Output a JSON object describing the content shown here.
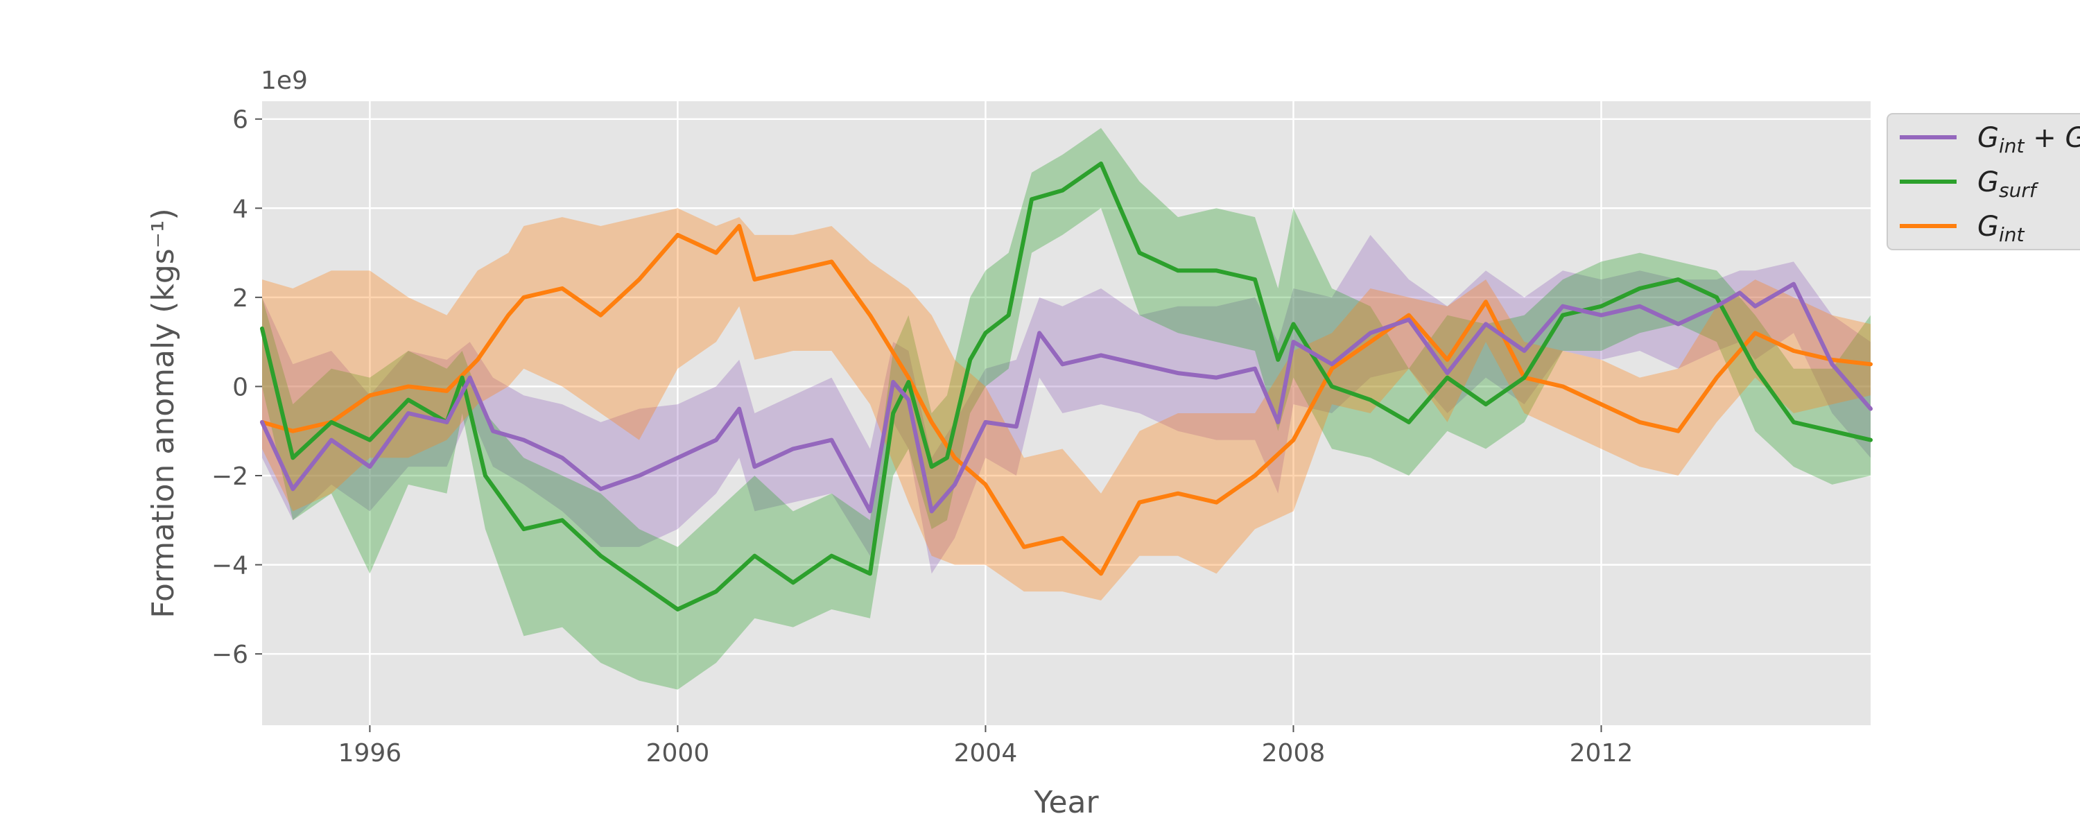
{
  "chart_data": {
    "type": "line",
    "title": "",
    "xlabel": "Year",
    "ylabel": "Formation anomaly (kgs⁻¹)",
    "y_multiplier_label": "1e9",
    "xlim": [
      1994.6,
      2015.5
    ],
    "ylim": [
      -7.6,
      6.4
    ],
    "x_ticks": [
      1996,
      2000,
      2004,
      2008,
      2012
    ],
    "x_tick_labels": [
      "1996",
      "2000",
      "2004",
      "2008",
      "2012"
    ],
    "y_ticks": [
      -6,
      -4,
      -2,
      0,
      2,
      4,
      6
    ],
    "y_tick_labels": [
      "−6",
      "−4",
      "−2",
      "0",
      "2",
      "4",
      "6"
    ],
    "grid": true,
    "legend_position": "outside-top-right",
    "series": [
      {
        "name": "G_int + G_surf",
        "name_main": "G",
        "name_sub": "int",
        "name_rest": " + G",
        "color": "#9467bd",
        "x": [
          1994.6,
          1995.0,
          1995.5,
          1996.0,
          1996.5,
          1997.0,
          1997.3,
          1997.6,
          1998.0,
          1998.5,
          1999.0,
          1999.5,
          2000.0,
          2000.5,
          2000.8,
          2001.0,
          2001.5,
          2002.0,
          2002.5,
          2002.8,
          2003.0,
          2003.3,
          2003.6,
          2004.0,
          2004.4,
          2004.7,
          2005.0,
          2005.5,
          2006.0,
          2006.5,
          2007.0,
          2007.5,
          2007.8,
          2008.0,
          2008.5,
          2009.0,
          2009.5,
          2010.0,
          2010.5,
          2011.0,
          2011.5,
          2012.0,
          2012.5,
          2013.0,
          2013.5,
          2013.8,
          2014.0,
          2014.5,
          2015.0,
          2015.5
        ],
        "values": [
          -0.8,
          -2.3,
          -1.2,
          -1.8,
          -0.6,
          -0.8,
          0.2,
          -1.0,
          -1.2,
          -1.6,
          -2.3,
          -2.0,
          -1.6,
          -1.2,
          -0.5,
          -1.8,
          -1.4,
          -1.2,
          -2.8,
          0.1,
          -0.3,
          -2.8,
          -2.2,
          -0.8,
          -0.9,
          1.2,
          0.5,
          0.7,
          0.5,
          0.3,
          0.2,
          0.4,
          -0.8,
          1.0,
          0.5,
          1.2,
          1.5,
          0.3,
          1.4,
          0.8,
          1.8,
          1.6,
          1.8,
          1.4,
          1.8,
          2.1,
          1.8,
          2.3,
          0.5,
          -0.5
        ],
        "band_upper": [
          2.0,
          0.5,
          0.8,
          -0.2,
          0.8,
          0.6,
          1.0,
          0.2,
          -0.2,
          -0.4,
          -0.8,
          -0.5,
          -0.4,
          0.0,
          0.6,
          -0.6,
          -0.2,
          0.2,
          -1.4,
          1.0,
          0.8,
          -1.6,
          -0.8,
          0.4,
          0.6,
          2.0,
          1.8,
          2.2,
          1.6,
          1.8,
          1.8,
          2.0,
          1.0,
          2.2,
          2.0,
          3.4,
          2.4,
          1.8,
          2.6,
          2.0,
          2.6,
          2.4,
          2.6,
          2.4,
          2.4,
          2.6,
          2.6,
          2.8,
          1.6,
          1.0
        ],
        "band_lower": [
          -1.6,
          -3.0,
          -2.2,
          -2.8,
          -1.8,
          -1.8,
          -0.6,
          -1.8,
          -2.2,
          -2.8,
          -3.6,
          -3.6,
          -3.2,
          -2.4,
          -1.6,
          -2.8,
          -2.6,
          -2.4,
          -3.8,
          -0.8,
          -1.4,
          -4.2,
          -3.4,
          -1.6,
          -2.0,
          0.2,
          -0.6,
          -0.4,
          -0.6,
          -1.0,
          -1.2,
          -1.2,
          -2.4,
          -0.4,
          -0.6,
          0.2,
          0.4,
          -0.6,
          0.2,
          -0.4,
          0.8,
          0.6,
          0.8,
          0.4,
          0.8,
          1.0,
          0.6,
          1.2,
          -0.6,
          -1.6
        ]
      },
      {
        "name": "G_surf",
        "name_main": "G",
        "name_sub": "surf",
        "name_rest": "",
        "color": "#2ca02c",
        "x": [
          1994.6,
          1995.0,
          1995.5,
          1996.0,
          1996.5,
          1997.0,
          1997.2,
          1997.5,
          1998.0,
          1998.5,
          1999.0,
          1999.5,
          2000.0,
          2000.5,
          2001.0,
          2001.5,
          2002.0,
          2002.5,
          2002.8,
          2003.0,
          2003.3,
          2003.5,
          2003.8,
          2004.0,
          2004.3,
          2004.6,
          2005.0,
          2005.5,
          2006.0,
          2006.5,
          2007.0,
          2007.5,
          2007.8,
          2008.0,
          2008.5,
          2009.0,
          2009.5,
          2010.0,
          2010.5,
          2011.0,
          2011.5,
          2012.0,
          2012.5,
          2013.0,
          2013.5,
          2014.0,
          2014.5,
          2015.0,
          2015.5
        ],
        "values": [
          1.3,
          -1.6,
          -0.8,
          -1.2,
          -0.3,
          -0.8,
          0.2,
          -2.0,
          -3.2,
          -3.0,
          -3.8,
          -4.4,
          -5.0,
          -4.6,
          -3.8,
          -4.4,
          -3.8,
          -4.2,
          -0.6,
          0.1,
          -1.8,
          -1.6,
          0.6,
          1.2,
          1.6,
          4.2,
          4.4,
          5.0,
          3.0,
          2.6,
          2.6,
          2.4,
          0.6,
          1.4,
          0.0,
          -0.3,
          -0.8,
          0.2,
          -0.4,
          0.2,
          1.6,
          1.8,
          2.2,
          2.4,
          2.0,
          0.4,
          -0.8,
          -1.0,
          -1.2
        ],
        "band_upper": [
          2.0,
          -0.4,
          0.4,
          0.2,
          0.8,
          0.4,
          0.8,
          -0.6,
          -1.6,
          -2.0,
          -2.4,
          -3.2,
          -3.6,
          -2.8,
          -2.0,
          -2.8,
          -2.4,
          -3.0,
          0.8,
          1.6,
          -0.6,
          -0.2,
          2.0,
          2.6,
          3.0,
          4.8,
          5.2,
          5.8,
          4.6,
          3.8,
          4.0,
          3.8,
          2.2,
          4.0,
          2.2,
          1.8,
          0.4,
          1.6,
          1.4,
          1.6,
          2.4,
          2.8,
          3.0,
          2.8,
          2.6,
          1.6,
          0.4,
          0.4,
          1.6
        ],
        "band_lower": [
          0.0,
          -3.0,
          -2.4,
          -4.2,
          -2.2,
          -2.4,
          -0.6,
          -3.2,
          -5.6,
          -5.4,
          -6.2,
          -6.6,
          -6.8,
          -6.2,
          -5.2,
          -5.4,
          -5.0,
          -5.2,
          -2.0,
          -1.4,
          -3.2,
          -3.0,
          -0.6,
          0.0,
          0.4,
          3.0,
          3.4,
          4.0,
          1.6,
          1.2,
          1.0,
          0.8,
          -1.0,
          0.2,
          -1.4,
          -1.6,
          -2.0,
          -1.0,
          -1.4,
          -0.8,
          0.8,
          0.8,
          1.2,
          1.4,
          1.0,
          -1.0,
          -1.8,
          -2.2,
          -2.0
        ]
      },
      {
        "name": "G_int",
        "name_main": "G",
        "name_sub": "int",
        "name_rest": "",
        "color": "#ff7f0e",
        "x": [
          1994.6,
          1995.0,
          1995.5,
          1996.0,
          1996.5,
          1997.0,
          1997.4,
          1997.8,
          1998.0,
          1998.5,
          1999.0,
          1999.5,
          2000.0,
          2000.5,
          2000.8,
          2001.0,
          2001.5,
          2002.0,
          2002.5,
          2003.0,
          2003.3,
          2003.6,
          2004.0,
          2004.5,
          2005.0,
          2005.5,
          2006.0,
          2006.5,
          2007.0,
          2007.5,
          2008.0,
          2008.5,
          2009.0,
          2009.5,
          2010.0,
          2010.5,
          2011.0,
          2011.5,
          2012.0,
          2012.5,
          2013.0,
          2013.5,
          2014.0,
          2014.5,
          2015.0,
          2015.5
        ],
        "values": [
          -0.8,
          -1.0,
          -0.8,
          -0.2,
          0.0,
          -0.1,
          0.6,
          1.6,
          2.0,
          2.2,
          1.6,
          2.4,
          3.4,
          3.0,
          3.6,
          2.4,
          2.6,
          2.8,
          1.6,
          0.2,
          -0.8,
          -1.6,
          -2.2,
          -3.6,
          -3.4,
          -4.2,
          -2.6,
          -2.4,
          -2.6,
          -2.0,
          -1.2,
          0.4,
          1.0,
          1.6,
          0.6,
          1.9,
          0.2,
          0.0,
          -0.4,
          -0.8,
          -1.0,
          0.2,
          1.2,
          0.8,
          0.6,
          0.5
        ],
        "band_upper": [
          2.4,
          2.2,
          2.6,
          2.6,
          2.0,
          1.6,
          2.6,
          3.0,
          3.6,
          3.8,
          3.6,
          3.8,
          4.0,
          3.6,
          3.8,
          3.4,
          3.4,
          3.6,
          2.8,
          2.2,
          1.6,
          0.6,
          0.0,
          -1.6,
          -1.4,
          -2.4,
          -1.0,
          -0.6,
          -0.6,
          -0.6,
          0.8,
          1.2,
          2.2,
          2.0,
          1.8,
          2.4,
          1.0,
          0.8,
          0.6,
          0.2,
          0.4,
          1.8,
          2.4,
          2.0,
          1.6,
          1.4
        ],
        "band_lower": [
          -1.4,
          -2.8,
          -2.4,
          -1.6,
          -1.6,
          -1.2,
          -0.4,
          0.0,
          0.4,
          0.0,
          -0.6,
          -1.2,
          0.4,
          1.0,
          1.8,
          0.6,
          0.8,
          0.8,
          -0.4,
          -2.6,
          -3.8,
          -4.0,
          -4.0,
          -4.6,
          -4.6,
          -4.8,
          -3.8,
          -3.8,
          -4.2,
          -3.2,
          -2.8,
          -0.4,
          -0.6,
          0.4,
          -0.8,
          1.0,
          -0.6,
          -1.0,
          -1.4,
          -1.8,
          -2.0,
          -0.8,
          0.2,
          -0.6,
          -0.4,
          -0.2
        ]
      }
    ]
  }
}
